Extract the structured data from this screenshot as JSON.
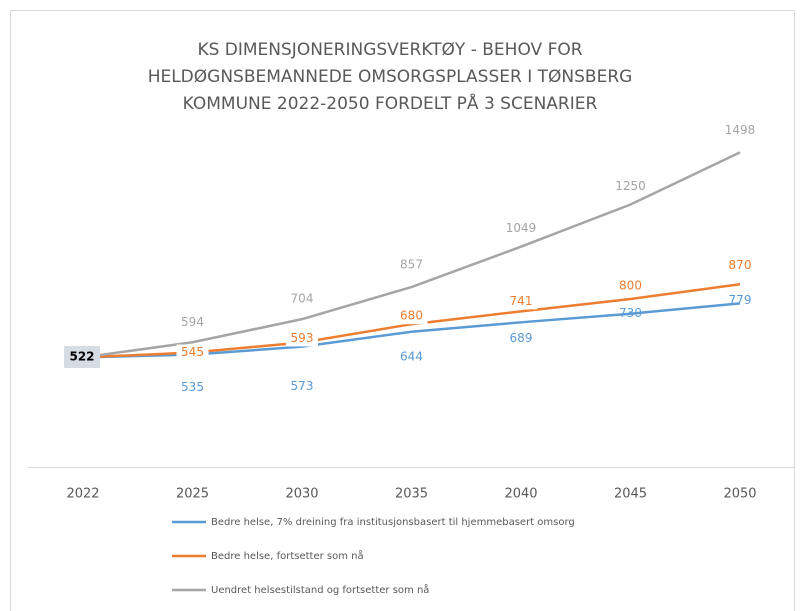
{
  "chart_data": {
    "type": "line",
    "title": [
      "KS DIMENSJONERINGSVERKTØY  - BEHOV FOR",
      "HELDØGNSBEMANNEDE OMSORGSPLASSER I TØNSBERG",
      "KOMMUNE  2022-2050 FORDELT PÅ 3 SCENARIER"
    ],
    "categories": [
      "2022",
      "2025",
      "2030",
      "2035",
      "2040",
      "2045",
      "2050"
    ],
    "ylim": [
      0,
      1800
    ],
    "series": [
      {
        "name": "Bedre helse, 7% dreining fra institusjonsbasert til hjemmebasert omsorg",
        "color": "#5b9bd5",
        "values": [
          522,
          535,
          573,
          644,
          689,
          730,
          779
        ]
      },
      {
        "name": "Bedre helse, fortsetter som nå",
        "color": "#ed7d31",
        "values": [
          522,
          545,
          593,
          680,
          741,
          800,
          870
        ]
      },
      {
        "name": "Uendret helsestilstand og fortsetter som nå",
        "color": "#a5a5a5",
        "values": [
          522,
          594,
          704,
          857,
          1049,
          1250,
          1498
        ]
      }
    ]
  }
}
